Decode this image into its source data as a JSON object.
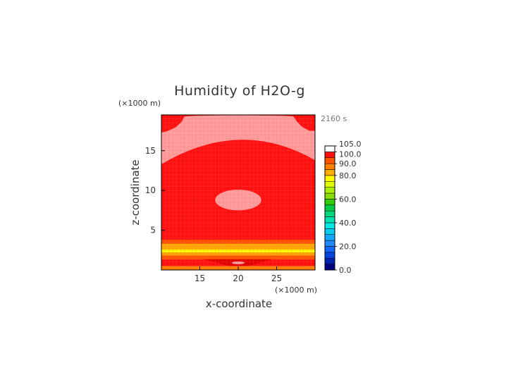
{
  "chart_data": {
    "type": "heatmap",
    "title": "Humidity of H2O-g",
    "xlabel": "x-coordinate",
    "ylabel": "z-coordinate",
    "x_unit": "(×1000 m)",
    "y_unit": "(×1000 m)",
    "time_label": "2160 s",
    "xlim": [
      10,
      30
    ],
    "ylim": [
      0,
      19.5
    ],
    "x_ticks": [
      15,
      20,
      25
    ],
    "y_ticks": [
      5,
      10,
      15
    ],
    "colorbar": {
      "labels": [
        "0.0",
        "20.0",
        "40.0",
        "60.0",
        "80.0",
        "90.0",
        "100.0",
        "105.0"
      ],
      "levels": [
        {
          "lo": 0,
          "hi": 5,
          "color": "#000080"
        },
        {
          "lo": 5,
          "hi": 10,
          "color": "#0022b0"
        },
        {
          "lo": 10,
          "hi": 15,
          "color": "#0044dd"
        },
        {
          "lo": 15,
          "hi": 20,
          "color": "#1166ff"
        },
        {
          "lo": 20,
          "hi": 25,
          "color": "#2288ff"
        },
        {
          "lo": 25,
          "hi": 30,
          "color": "#11aaff"
        },
        {
          "lo": 30,
          "hi": 35,
          "color": "#00ccee"
        },
        {
          "lo": 35,
          "hi": 40,
          "color": "#00e8e8"
        },
        {
          "lo": 40,
          "hi": 45,
          "color": "#00e0b0"
        },
        {
          "lo": 45,
          "hi": 50,
          "color": "#00d880"
        },
        {
          "lo": 50,
          "hi": 55,
          "color": "#00cc44"
        },
        {
          "lo": 55,
          "hi": 60,
          "color": "#33cc00"
        },
        {
          "lo": 60,
          "hi": 65,
          "color": "#88dd00"
        },
        {
          "lo": 65,
          "hi": 70,
          "color": "#aaee00"
        },
        {
          "lo": 70,
          "hi": 75,
          "color": "#ddff00"
        },
        {
          "lo": 75,
          "hi": 80,
          "color": "#ffff00"
        },
        {
          "lo": 80,
          "hi": 85,
          "color": "#ffaa00"
        },
        {
          "lo": 85,
          "hi": 90,
          "color": "#ff8000"
        },
        {
          "lo": 90,
          "hi": 95,
          "color": "#ff5500"
        },
        {
          "lo": 95,
          "hi": 100,
          "color": "#ff1010"
        },
        {
          "lo": 100,
          "hi": 105,
          "color": "#ffffff"
        }
      ]
    },
    "regions": {
      "background_humidity": 97,
      "saturated_cap_top_humidity": 102,
      "saturated_patch_center_humidity": 102,
      "saturated_patch_center": [
        20.0,
        8.8
      ],
      "saturated_patch_radius": [
        3.0,
        1.3
      ],
      "lower_bands": [
        {
          "z_lo": 3.3,
          "z_hi": 3.8,
          "humidity": 92
        },
        {
          "z_lo": 2.6,
          "z_hi": 3.3,
          "humidity": 84
        },
        {
          "z_lo": 2.2,
          "z_hi": 2.6,
          "humidity": 77
        },
        {
          "z_lo": 1.8,
          "z_hi": 2.2,
          "humidity": 84
        },
        {
          "z_lo": 1.3,
          "z_hi": 1.8,
          "humidity": 90
        },
        {
          "z_lo": 0.5,
          "z_hi": 1.3,
          "humidity": 96
        },
        {
          "z_lo": 0.0,
          "z_hi": 0.5,
          "humidity": 85
        }
      ]
    },
    "colors": {
      "pink": "#ff9e9e",
      "red": "#ff1010",
      "dark_red": "#e00000",
      "orange": "#ff8000",
      "light_orange": "#ffaa00",
      "yellow": "#ffff00",
      "grid": "#ff6060"
    }
  }
}
